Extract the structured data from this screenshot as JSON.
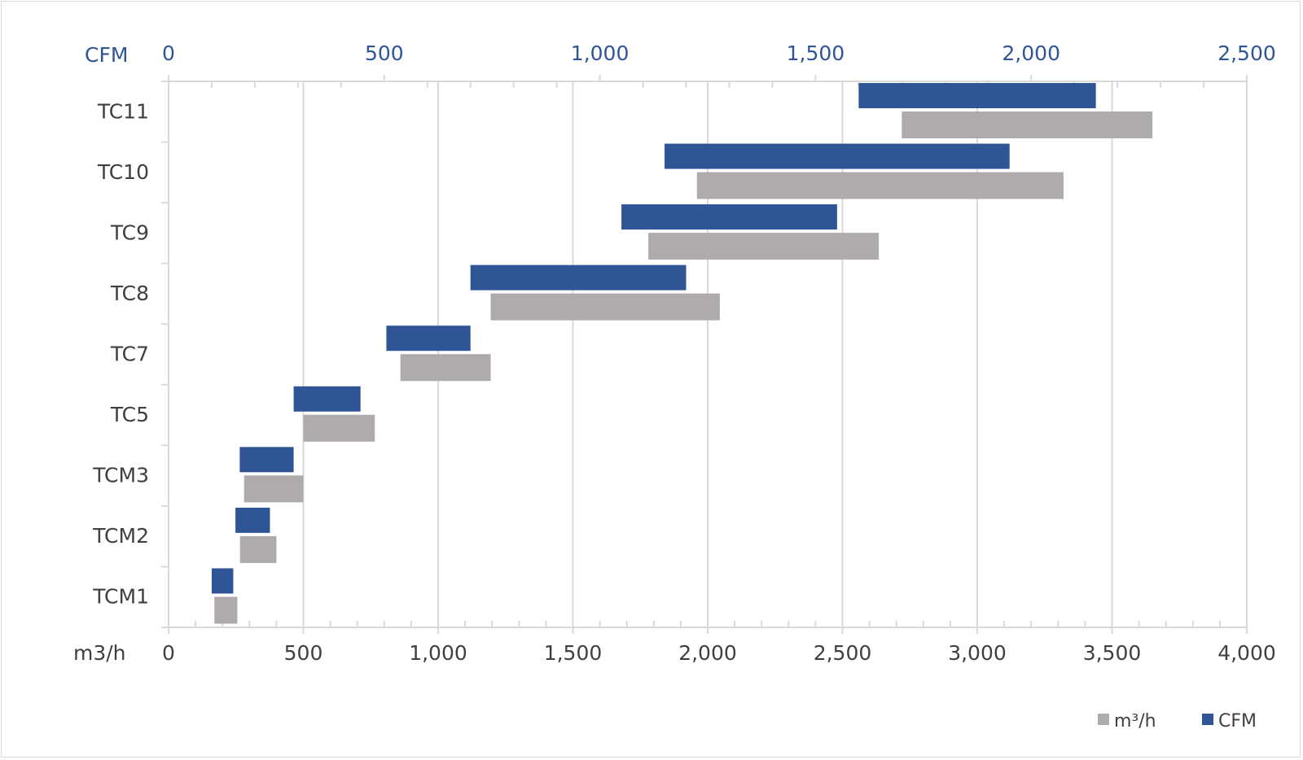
{
  "chart_data": {
    "type": "bar",
    "orientation": "horizontal",
    "style": "floating-range",
    "categories": [
      "TCM1",
      "TCM2",
      "TCM3",
      "TC5",
      "TC7",
      "TC8",
      "TC9",
      "TC10",
      "TC11"
    ],
    "series": [
      {
        "name": "m³/h",
        "axis": "bottom",
        "color": "#afabab",
        "ranges": [
          [
            170,
            255
          ],
          [
            265,
            400
          ],
          [
            280,
            500
          ],
          [
            500,
            765
          ],
          [
            860,
            1195
          ],
          [
            1195,
            2045
          ],
          [
            1780,
            2635
          ],
          [
            1960,
            3320
          ],
          [
            2720,
            3650
          ]
        ]
      },
      {
        "name": "CFM",
        "axis": "top",
        "color": "#2f5597",
        "ranges": [
          [
            100,
            150
          ],
          [
            155,
            235
          ],
          [
            165,
            290
          ],
          [
            290,
            445
          ],
          [
            505,
            700
          ],
          [
            700,
            1200
          ],
          [
            1050,
            1550
          ],
          [
            1150,
            1950
          ],
          [
            1600,
            2150
          ]
        ]
      }
    ],
    "x_bottom": {
      "label": "m3/h",
      "range": [
        0,
        4000
      ],
      "ticks": [
        "0",
        "500",
        "1,000",
        "1,500",
        "2,000",
        "2,500",
        "3,000",
        "3,500",
        "4,000"
      ],
      "tick_values": [
        0,
        500,
        1000,
        1500,
        2000,
        2500,
        3000,
        3500,
        4000
      ]
    },
    "x_top": {
      "label": "CFM",
      "range": [
        0,
        2500
      ],
      "ticks": [
        "0",
        "500",
        "1,000",
        "1,500",
        "2,000",
        "2,500"
      ],
      "tick_values": [
        0,
        500,
        1000,
        1500,
        2000,
        2500
      ]
    },
    "grid": true,
    "legend": {
      "position": "bottom-right",
      "entries": [
        {
          "label": "m³/h",
          "color": "#afabab"
        },
        {
          "label": "CFM",
          "color": "#2f5597"
        }
      ]
    }
  }
}
